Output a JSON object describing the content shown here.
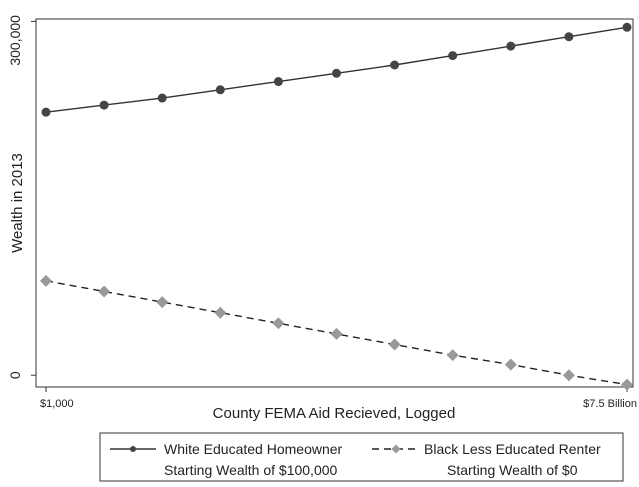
{
  "chart_data": {
    "type": "line",
    "title": "",
    "xlabel": "County FEMA Aid Recieved, Logged",
    "ylabel": "Wealth in 2013",
    "x": [
      0,
      1,
      2,
      3,
      4,
      5,
      6,
      7,
      8,
      9,
      10
    ],
    "x_tick_labels": [
      {
        "x": 0,
        "label": "$1,000"
      },
      {
        "x": 10,
        "label": "$7.5 Billion"
      }
    ],
    "y_tick_labels": [
      {
        "y": 0,
        "label": "0"
      },
      {
        "y": 300000,
        "label": "300,000"
      }
    ],
    "ylim": [
      -10000,
      302000
    ],
    "xlim": [
      0,
      10
    ],
    "grid": false,
    "legend_position": "bottom",
    "series": [
      {
        "name": "White Educated Homeowner",
        "note": "Starting Wealth of $100,000",
        "style": "solid",
        "marker": "circle",
        "color": "#444444",
        "values": [
          223000,
          229000,
          235000,
          242000,
          249000,
          256000,
          263000,
          271000,
          279000,
          287000,
          295000
        ]
      },
      {
        "name": "Black Less Educated Renter",
        "note": "Starting Wealth of $0",
        "style": "dashed",
        "marker": "diamond",
        "color": "#999999",
        "values": [
          80000,
          71000,
          62000,
          53000,
          44000,
          35000,
          26000,
          17000,
          9000,
          0,
          -8000
        ]
      }
    ]
  }
}
